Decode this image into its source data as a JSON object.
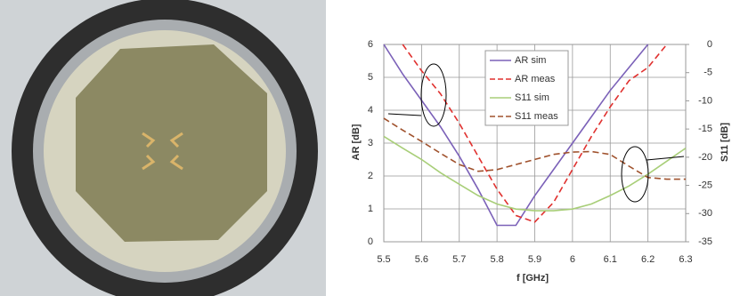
{
  "chart_data": {
    "type": "line",
    "x_label": "f [GHz]",
    "y_label": "AR [dB]",
    "y2_label": "S11 [dB]",
    "x": [
      5.5,
      5.55,
      5.6,
      5.65,
      5.7,
      5.75,
      5.8,
      5.85,
      5.9,
      5.95,
      6.0,
      6.05,
      6.1,
      6.15,
      6.2,
      6.25,
      6.3
    ],
    "xlim": [
      5.5,
      6.3
    ],
    "xticks": [
      5.5,
      5.6,
      5.7,
      5.8,
      5.9,
      6,
      6.1,
      6.2,
      6.3
    ],
    "ylim": [
      0,
      6
    ],
    "yticks": [
      0,
      1,
      2,
      3,
      4,
      5,
      6
    ],
    "y2lim": [
      -35,
      0
    ],
    "y2ticks": [
      -35,
      -30,
      -25,
      -20,
      -15,
      -10,
      -5,
      0
    ],
    "grid": true,
    "legend": "top-center",
    "series": [
      {
        "name": "AR sim",
        "color": "#7b61b8",
        "dash": false,
        "values": [
          6.0,
          5.1,
          4.3,
          3.5,
          2.6,
          1.6,
          0.5,
          0.5,
          1.4,
          2.2,
          3.0,
          3.8,
          4.6,
          5.3,
          6.0,
          null,
          null
        ]
      },
      {
        "name": "AR meas",
        "color": "#e0312f",
        "dash": true,
        "values": [
          null,
          6.0,
          5.2,
          4.5,
          3.6,
          2.6,
          1.6,
          0.8,
          0.6,
          1.2,
          2.2,
          3.2,
          4.1,
          4.9,
          5.3,
          6.0,
          null
        ]
      },
      {
        "name": "S11 sim",
        "color": "#a8ce78",
        "dash": false,
        "axis": "y2",
        "values": [
          -16.3,
          -18.4,
          -20.4,
          -22.75,
          -24.8,
          -26.8,
          -28.3,
          -29.2,
          -29.5,
          -29.5,
          -29.2,
          -28.3,
          -26.8,
          -25.1,
          -23.0,
          -20.7,
          -18.4
        ]
      },
      {
        "name": "S11 meas",
        "color": "#a0522d",
        "dash": true,
        "axis": "y2",
        "values": [
          -13.1,
          -15.2,
          -17.2,
          -19.3,
          -21.3,
          -22.5,
          -22.2,
          -21.3,
          -20.4,
          -19.5,
          -19.1,
          -19.0,
          -19.5,
          -21.6,
          -23.6,
          -23.9,
          -23.9
        ]
      }
    ]
  }
}
